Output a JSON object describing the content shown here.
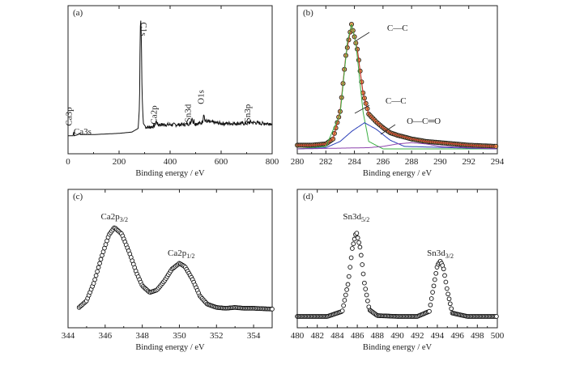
{
  "chart_data": [
    {
      "panel": "(a)",
      "type": "line",
      "xlabel": "Binding energy / eV",
      "xlim": [
        0,
        800
      ],
      "xticks": [
        0,
        200,
        400,
        600,
        800
      ],
      "grid": false,
      "annotations": [
        {
          "text": "Ca3p",
          "x": 20
        },
        {
          "text": "Ca3s",
          "x": 44
        },
        {
          "text": "C1s",
          "x": 285
        },
        {
          "text": "Ca2p",
          "x": 347
        },
        {
          "text": "Sn3d",
          "x": 487
        },
        {
          "text": "O1s",
          "x": 532
        },
        {
          "text": "Sn3p",
          "x": 715
        }
      ],
      "series": [
        {
          "values": [
            [
              0,
              0.06
            ],
            [
              20,
              0.06
            ],
            [
              22,
              0.1
            ],
            [
              24,
              0.06
            ],
            [
              40,
              0.07
            ],
            [
              44,
              0.08
            ],
            [
              48,
              0.07
            ],
            [
              100,
              0.07
            ],
            [
              200,
              0.08
            ],
            [
              250,
              0.09
            ],
            [
              275,
              0.12
            ],
            [
              280,
              0.3
            ],
            [
              283,
              0.93
            ],
            [
              285,
              0.99
            ],
            [
              287,
              0.92
            ],
            [
              290,
              0.4
            ],
            [
              295,
              0.16
            ],
            [
              305,
              0.13
            ],
            [
              320,
              0.13
            ],
            [
              340,
              0.14
            ],
            [
              345,
              0.18
            ],
            [
              348,
              0.17
            ],
            [
              352,
              0.15
            ],
            [
              400,
              0.15
            ],
            [
              450,
              0.15
            ],
            [
              480,
              0.16
            ],
            [
              485,
              0.2
            ],
            [
              487,
              0.21
            ],
            [
              490,
              0.16
            ],
            [
              493,
              0.19
            ],
            [
              496,
              0.16
            ],
            [
              520,
              0.16
            ],
            [
              528,
              0.18
            ],
            [
              532,
              0.25
            ],
            [
              536,
              0.18
            ],
            [
              560,
              0.17
            ],
            [
              600,
              0.16
            ],
            [
              650,
              0.16
            ],
            [
              700,
              0.16
            ],
            [
              715,
              0.17
            ],
            [
              760,
              0.16
            ],
            [
              800,
              0.16
            ]
          ]
        }
      ]
    },
    {
      "panel": "(b)",
      "type": "line",
      "xlabel": "Binding energy / eV",
      "xlim": [
        280,
        294
      ],
      "xticks": [
        280,
        282,
        284,
        286,
        288,
        290,
        292,
        294
      ],
      "grid": false,
      "annotations": [
        {
          "text": "C—C",
          "x": 285.2
        },
        {
          "text": "C—C",
          "x": 285.2
        },
        {
          "text": "O—C═O",
          "x": 287.6
        }
      ],
      "series": [
        {
          "values": [
            [
              280,
              0.03
            ],
            [
              281,
              0.03
            ],
            [
              282,
              0.04
            ],
            [
              282.5,
              0.08
            ],
            [
              283,
              0.3
            ],
            [
              283.4,
              0.75
            ],
            [
              283.8,
              1.0
            ],
            [
              284.2,
              0.8
            ],
            [
              284.6,
              0.45
            ],
            [
              285,
              0.28
            ],
            [
              285.5,
              0.22
            ],
            [
              286,
              0.17
            ],
            [
              286.5,
              0.13
            ],
            [
              287,
              0.11
            ],
            [
              288,
              0.08
            ],
            [
              289,
              0.06
            ],
            [
              290,
              0.05
            ],
            [
              292,
              0.03
            ],
            [
              294,
              0.02
            ]
          ]
        },
        {
          "values": [
            [
              280,
              0.0
            ],
            [
              282,
              0.02
            ],
            [
              283,
              0.28
            ],
            [
              283.5,
              0.85
            ],
            [
              283.8,
              1.0
            ],
            [
              284.1,
              0.85
            ],
            [
              284.6,
              0.3
            ],
            [
              285,
              0.06
            ],
            [
              286,
              0.0
            ],
            [
              294,
              0.0
            ]
          ]
        },
        {
          "values": [
            [
              280,
              0.0
            ],
            [
              282,
              0.01
            ],
            [
              283,
              0.06
            ],
            [
              283.8,
              0.14
            ],
            [
              284.7,
              0.21
            ],
            [
              285.5,
              0.16
            ],
            [
              286.5,
              0.07
            ],
            [
              287.5,
              0.02
            ],
            [
              294,
              0.0
            ]
          ]
        },
        {
          "values": [
            [
              280,
              0.0
            ],
            [
              285,
              0.01
            ],
            [
              286,
              0.02
            ],
            [
              287,
              0.04
            ],
            [
              288,
              0.05
            ],
            [
              289,
              0.04
            ],
            [
              290,
              0.02
            ],
            [
              292,
              0.01
            ],
            [
              294,
              0.0
            ]
          ]
        }
      ]
    },
    {
      "panel": "(c)",
      "type": "scatter",
      "xlabel": "Binding energy / eV",
      "xlim": [
        344,
        355
      ],
      "xticks": [
        344,
        346,
        348,
        350,
        352,
        354
      ],
      "grid": false,
      "annotations": [
        {
          "text": "Ca2p",
          "sub": "3/2",
          "x": 346.5
        },
        {
          "text": "Ca2p",
          "sub": "1/2",
          "x": 350.1
        }
      ],
      "series": [
        {
          "values": [
            [
              344.6,
              0.04
            ],
            [
              345,
              0.12
            ],
            [
              345.4,
              0.34
            ],
            [
              345.8,
              0.64
            ],
            [
              346.2,
              0.91
            ],
            [
              346.5,
              1.0
            ],
            [
              346.9,
              0.92
            ],
            [
              347.3,
              0.7
            ],
            [
              347.7,
              0.45
            ],
            [
              348,
              0.3
            ],
            [
              348.4,
              0.22
            ],
            [
              348.8,
              0.25
            ],
            [
              349.2,
              0.36
            ],
            [
              349.6,
              0.5
            ],
            [
              350,
              0.57
            ],
            [
              350.3,
              0.53
            ],
            [
              350.7,
              0.38
            ],
            [
              351.1,
              0.18
            ],
            [
              351.5,
              0.08
            ],
            [
              352,
              0.04
            ],
            [
              352.5,
              0.03
            ],
            [
              353,
              0.04
            ],
            [
              353.5,
              0.03
            ],
            [
              354,
              0.03
            ],
            [
              355,
              0.02
            ]
          ]
        }
      ]
    },
    {
      "panel": "(d)",
      "type": "scatter",
      "xlabel": "Binding energy / eV",
      "xlim": [
        480,
        500
      ],
      "xticks": [
        480,
        482,
        484,
        486,
        488,
        490,
        492,
        494,
        496,
        498,
        500
      ],
      "grid": false,
      "annotations": [
        {
          "text": "Sn3d",
          "sub": "5/2",
          "x": 485.9
        },
        {
          "text": "Sn3d",
          "sub": "3/2",
          "x": 494.3
        }
      ],
      "series": [
        {
          "values": [
            [
              480,
              0.0
            ],
            [
              483,
              0.0
            ],
            [
              484.5,
              0.06
            ],
            [
              485.1,
              0.4
            ],
            [
              485.5,
              0.8
            ],
            [
              485.9,
              1.0
            ],
            [
              486.3,
              0.8
            ],
            [
              486.7,
              0.4
            ],
            [
              487.2,
              0.08
            ],
            [
              488,
              0.01
            ],
            [
              490,
              0.0
            ],
            [
              492,
              0.0
            ],
            [
              493.2,
              0.06
            ],
            [
              493.7,
              0.4
            ],
            [
              494,
              0.6
            ],
            [
              494.3,
              0.65
            ],
            [
              494.6,
              0.58
            ],
            [
              495,
              0.3
            ],
            [
              495.5,
              0.04
            ],
            [
              497,
              0.0
            ],
            [
              500,
              0.0
            ]
          ]
        }
      ]
    }
  ]
}
